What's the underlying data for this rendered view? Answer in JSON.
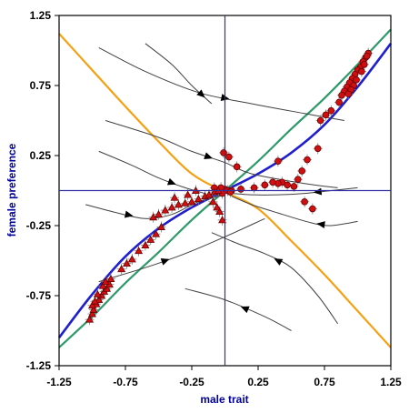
{
  "chart_data": {
    "type": "scatter",
    "title": "",
    "xlabel": "male trait",
    "ylabel": "female preference",
    "xlim": [
      -1.25,
      1.25
    ],
    "ylim": [
      -1.25,
      1.25
    ],
    "x_ticks": [
      "-1.25",
      "-0.75",
      "-0.25",
      "0.25",
      "0.75",
      "1.25"
    ],
    "y_ticks": [
      "1.25",
      "0.75",
      "0.25",
      "-0.25",
      "-0.75",
      "-1.25"
    ],
    "grid": false,
    "legend": "none",
    "colors": {
      "frame": "#000000",
      "zero_axes": "#3030a0",
      "blue_curve": "#1f1fd0",
      "green_curve": "#2e9a6a",
      "orange_curve": "#f5a010",
      "trajectory": "#404040",
      "marker_fill": "#d01010",
      "marker_stroke": "#6a0000",
      "error_bars": "#808080"
    },
    "curves": {
      "blue": [
        [
          -1.25,
          -1.05
        ],
        [
          -1.0,
          -0.74
        ],
        [
          -0.75,
          -0.47
        ],
        [
          -0.5,
          -0.27
        ],
        [
          -0.25,
          -0.12
        ],
        [
          0.0,
          0.0
        ],
        [
          0.25,
          0.12
        ],
        [
          0.5,
          0.27
        ],
        [
          0.75,
          0.47
        ],
        [
          1.0,
          0.74
        ],
        [
          1.25,
          1.05
        ]
      ],
      "green": [
        [
          -1.25,
          -1.12
        ],
        [
          -1.0,
          -0.9
        ],
        [
          -0.75,
          -0.66
        ],
        [
          -0.5,
          -0.44
        ],
        [
          -0.25,
          -0.21
        ],
        [
          0.0,
          0.0
        ],
        [
          0.25,
          0.21
        ],
        [
          0.5,
          0.44
        ],
        [
          0.75,
          0.66
        ],
        [
          1.0,
          0.9
        ],
        [
          1.25,
          1.15
        ]
      ],
      "orange": [
        [
          -1.25,
          1.12
        ],
        [
          -1.0,
          0.86
        ],
        [
          -0.75,
          0.6
        ],
        [
          -0.5,
          0.35
        ],
        [
          -0.25,
          0.12
        ],
        [
          0.0,
          -0.01
        ],
        [
          0.25,
          -0.13
        ],
        [
          0.5,
          -0.36
        ],
        [
          0.75,
          -0.6
        ],
        [
          1.0,
          -0.86
        ],
        [
          1.25,
          -1.12
        ]
      ]
    },
    "trajectories": [
      {
        "points": [
          [
            -0.95,
            1.02
          ],
          [
            -0.6,
            0.85
          ],
          [
            -0.2,
            0.7
          ],
          [
            0.2,
            0.62
          ],
          [
            0.6,
            0.55
          ],
          [
            0.9,
            0.5
          ]
        ],
        "arrow_at": 2,
        "arrow_dir": "forward"
      },
      {
        "points": [
          [
            -0.6,
            1.05
          ],
          [
            -0.4,
            0.9
          ],
          [
            -0.25,
            0.75
          ],
          [
            -0.1,
            0.62
          ]
        ],
        "arrow_at": 2,
        "arrow_dir": "forward"
      },
      {
        "points": [
          [
            -0.9,
            0.5
          ],
          [
            -0.5,
            0.38
          ],
          [
            -0.25,
            0.28
          ],
          [
            0.0,
            0.2
          ],
          [
            0.2,
            0.12
          ],
          [
            0.6,
            0.05
          ],
          [
            0.85,
            0.02
          ]
        ],
        "arrow_at": 2,
        "arrow_dir": "forward"
      },
      {
        "points": [
          [
            -0.95,
            0.28
          ],
          [
            -0.7,
            0.18
          ],
          [
            -0.5,
            0.09
          ],
          [
            -0.3,
            0.02
          ],
          [
            -0.15,
            -0.02
          ]
        ],
        "arrow_at": 2,
        "arrow_dir": "forward"
      },
      {
        "points": [
          [
            1.0,
            0.02
          ],
          [
            0.8,
            0.0
          ],
          [
            0.6,
            -0.02
          ],
          [
            0.4,
            -0.03
          ],
          [
            0.2,
            -0.03
          ],
          [
            0.05,
            -0.02
          ]
        ],
        "arrow_at": 1,
        "arrow_dir": "forward"
      },
      {
        "points": [
          [
            1.0,
            -0.22
          ],
          [
            0.8,
            -0.25
          ],
          [
            0.65,
            -0.23
          ],
          [
            0.4,
            -0.16
          ],
          [
            0.2,
            -0.1
          ],
          [
            0.05,
            -0.04
          ]
        ],
        "arrow_at": 1,
        "arrow_dir": "forward"
      },
      {
        "points": [
          [
            0.85,
            -0.95
          ],
          [
            0.7,
            -0.75
          ],
          [
            0.5,
            -0.55
          ],
          [
            0.3,
            -0.45
          ],
          [
            0.1,
            -0.38
          ],
          [
            -0.1,
            -0.3
          ]
        ],
        "arrow_at": 2,
        "arrow_dir": "forward"
      },
      {
        "points": [
          [
            0.5,
            -1.0
          ],
          [
            0.3,
            -0.9
          ],
          [
            0.0,
            -0.78
          ],
          [
            -0.3,
            -0.7
          ]
        ],
        "arrow_at": 1,
        "arrow_dir": "forward"
      },
      {
        "points": [
          [
            -0.95,
            -0.65
          ],
          [
            -0.6,
            -0.55
          ],
          [
            -0.3,
            -0.45
          ],
          [
            0.0,
            -0.33
          ],
          [
            0.3,
            -0.2
          ]
        ],
        "arrow_at": 1,
        "arrow_dir": "forward"
      },
      {
        "points": [
          [
            -1.05,
            -0.1
          ],
          [
            -0.85,
            -0.15
          ],
          [
            -0.6,
            -0.2
          ],
          [
            -0.4,
            -0.17
          ],
          [
            -0.2,
            -0.08
          ],
          [
            0.0,
            -0.03
          ]
        ],
        "arrow_at": 1,
        "arrow_dir": "forward"
      }
    ],
    "series": [
      {
        "name": "",
        "marker": "circle",
        "points": [
          [
            1.08,
            0.98
          ],
          [
            1.06,
            0.95
          ],
          [
            1.04,
            0.92
          ],
          [
            1.02,
            0.88
          ],
          [
            1.0,
            0.86
          ],
          [
            0.98,
            0.83
          ],
          [
            0.96,
            0.8
          ],
          [
            0.94,
            0.77
          ],
          [
            0.92,
            0.74
          ],
          [
            0.9,
            0.71
          ],
          [
            1.07,
            0.96
          ],
          [
            1.05,
            0.9
          ],
          [
            1.03,
            0.85
          ],
          [
            0.99,
            0.79
          ],
          [
            0.97,
            0.75
          ],
          [
            0.95,
            0.72
          ],
          [
            0.93,
            0.69
          ],
          [
            0.88,
            0.68
          ],
          [
            0.86,
            0.63
          ],
          [
            0.8,
            0.57
          ],
          [
            0.76,
            0.54
          ],
          [
            0.72,
            0.5
          ],
          [
            0.7,
            0.3
          ],
          [
            0.62,
            0.22
          ],
          [
            0.58,
            0.14
          ],
          [
            0.55,
            0.08
          ],
          [
            0.52,
            0.03
          ],
          [
            0.47,
            0.04
          ],
          [
            0.43,
            0.06
          ],
          [
            0.4,
            0.05
          ],
          [
            0.36,
            0.06
          ],
          [
            0.3,
            0.04
          ],
          [
            0.22,
            0.02
          ],
          [
            0.12,
            0.01
          ],
          [
            0.05,
            0.0
          ],
          [
            0.0,
            0.01
          ],
          [
            -0.03,
            0.02
          ],
          [
            -0.07,
            0.0
          ],
          [
            -0.02,
            -0.02
          ],
          [
            0.02,
            0.0
          ],
          [
            0.04,
            -0.01
          ],
          [
            -0.08,
            0.02
          ],
          [
            0.03,
            0.24
          ],
          [
            -0.01,
            0.27
          ],
          [
            0.09,
            0.17
          ],
          [
            0.4,
            0.21
          ],
          [
            0.6,
            -0.08
          ],
          [
            0.66,
            -0.13
          ]
        ]
      },
      {
        "name": "",
        "marker": "triangle",
        "points": [
          [
            -1.02,
            -0.92
          ],
          [
            -1.0,
            -0.88
          ],
          [
            -0.99,
            -0.85
          ],
          [
            -0.97,
            -0.81
          ],
          [
            -0.95,
            -0.78
          ],
          [
            -0.93,
            -0.75
          ],
          [
            -0.91,
            -0.72
          ],
          [
            -0.89,
            -0.7
          ],
          [
            -0.87,
            -0.67
          ],
          [
            -1.0,
            -0.82
          ],
          [
            -0.98,
            -0.79
          ],
          [
            -0.96,
            -0.74
          ],
          [
            -0.92,
            -0.68
          ],
          [
            -0.9,
            -0.65
          ],
          [
            -0.86,
            -0.63
          ],
          [
            -0.78,
            -0.56
          ],
          [
            -0.74,
            -0.52
          ],
          [
            -0.7,
            -0.49
          ],
          [
            -0.65,
            -0.43
          ],
          [
            -0.6,
            -0.39
          ],
          [
            -0.56,
            -0.35
          ],
          [
            -0.52,
            -0.31
          ],
          [
            -0.48,
            -0.26
          ],
          [
            -0.54,
            -0.19
          ],
          [
            -0.5,
            -0.17
          ],
          [
            -0.45,
            -0.14
          ],
          [
            -0.4,
            -0.12
          ],
          [
            -0.35,
            -0.1
          ],
          [
            -0.3,
            -0.09
          ],
          [
            -0.25,
            -0.08
          ],
          [
            -0.2,
            -0.06
          ],
          [
            -0.15,
            -0.04
          ],
          [
            -0.12,
            -0.03
          ],
          [
            -0.08,
            -0.01
          ],
          [
            -0.05,
            0.0
          ],
          [
            -0.04,
            -0.15
          ],
          [
            -0.02,
            -0.21
          ],
          [
            -0.06,
            -0.12
          ],
          [
            -0.09,
            -0.08
          ],
          [
            -0.28,
            -0.03
          ],
          [
            -0.22,
            0.0
          ],
          [
            -0.38,
            -0.05
          ]
        ]
      }
    ]
  }
}
